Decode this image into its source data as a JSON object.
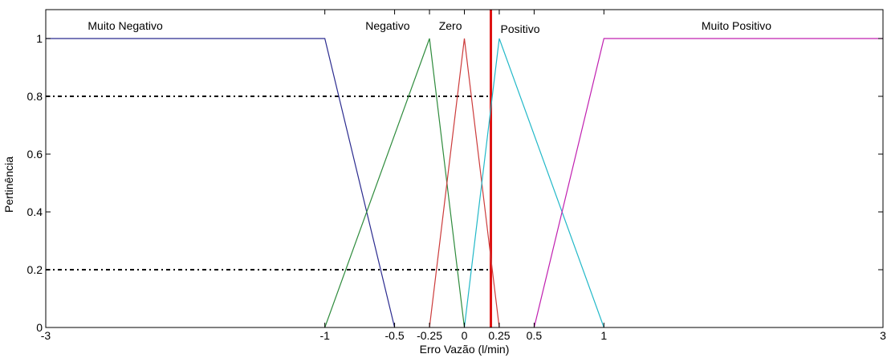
{
  "chart_data": {
    "type": "line",
    "title": "",
    "xlabel": "Erro Vazão (l/min)",
    "ylabel": "Pertinência",
    "xlim": [
      -3,
      3
    ],
    "ylim": [
      0,
      1.1
    ],
    "x_ticks": [
      -3,
      -1,
      -0.5,
      -0.25,
      0,
      0.25,
      0.5,
      1,
      3
    ],
    "x_tick_labels": [
      "-3",
      "-1",
      "-0.5",
      "-0.25",
      "0",
      "0.25",
      "0.5",
      "1",
      "3"
    ],
    "y_ticks": [
      0,
      0.2,
      0.4,
      0.6,
      0.8,
      1
    ],
    "y_tick_labels": [
      "0",
      "0.2",
      "0.4",
      "0.6",
      "0.8",
      "1"
    ],
    "grid": false,
    "series": [
      {
        "name": "Muito Negativo",
        "color": "#2b2b8f",
        "x": [
          -3,
          -1,
          -0.5
        ],
        "y": [
          1,
          1,
          0
        ]
      },
      {
        "name": "Negativo",
        "color": "#2e8b3c",
        "x": [
          -1,
          -0.25,
          0
        ],
        "y": [
          0,
          1,
          0
        ]
      },
      {
        "name": "Zero",
        "color": "#cc3b3b",
        "x": [
          -0.25,
          0,
          0.25
        ],
        "y": [
          0,
          1,
          0
        ]
      },
      {
        "name": "Positivo",
        "color": "#22b8c8",
        "x": [
          0,
          0.25,
          1
        ],
        "y": [
          0,
          1,
          0
        ]
      },
      {
        "name": "Muito Positivo",
        "color": "#c020b0",
        "x": [
          0.5,
          1,
          3
        ],
        "y": [
          0,
          1,
          1
        ]
      }
    ],
    "annotations": [
      {
        "text": "Muito Negativo",
        "x": -2.43,
        "y": 1.03
      },
      {
        "text": "Negativo",
        "x": -0.55,
        "y": 1.03
      },
      {
        "text": "Zero",
        "x": -0.1,
        "y": 1.03
      },
      {
        "text": "Positivo",
        "x": 0.4,
        "y": 1.02
      },
      {
        "text": "Muito Positivo",
        "x": 1.95,
        "y": 1.03
      }
    ],
    "reference_lines": [
      {
        "kind": "vertical",
        "x": 0.19,
        "color": "#dd1111"
      },
      {
        "kind": "horizontal-dotted",
        "y": 0.8,
        "x_from": -3,
        "x_to": 0.19,
        "color": "#000000"
      },
      {
        "kind": "horizontal-dotted",
        "y": 0.2,
        "x_from": -3,
        "x_to": 0.19,
        "color": "#000000"
      }
    ]
  }
}
